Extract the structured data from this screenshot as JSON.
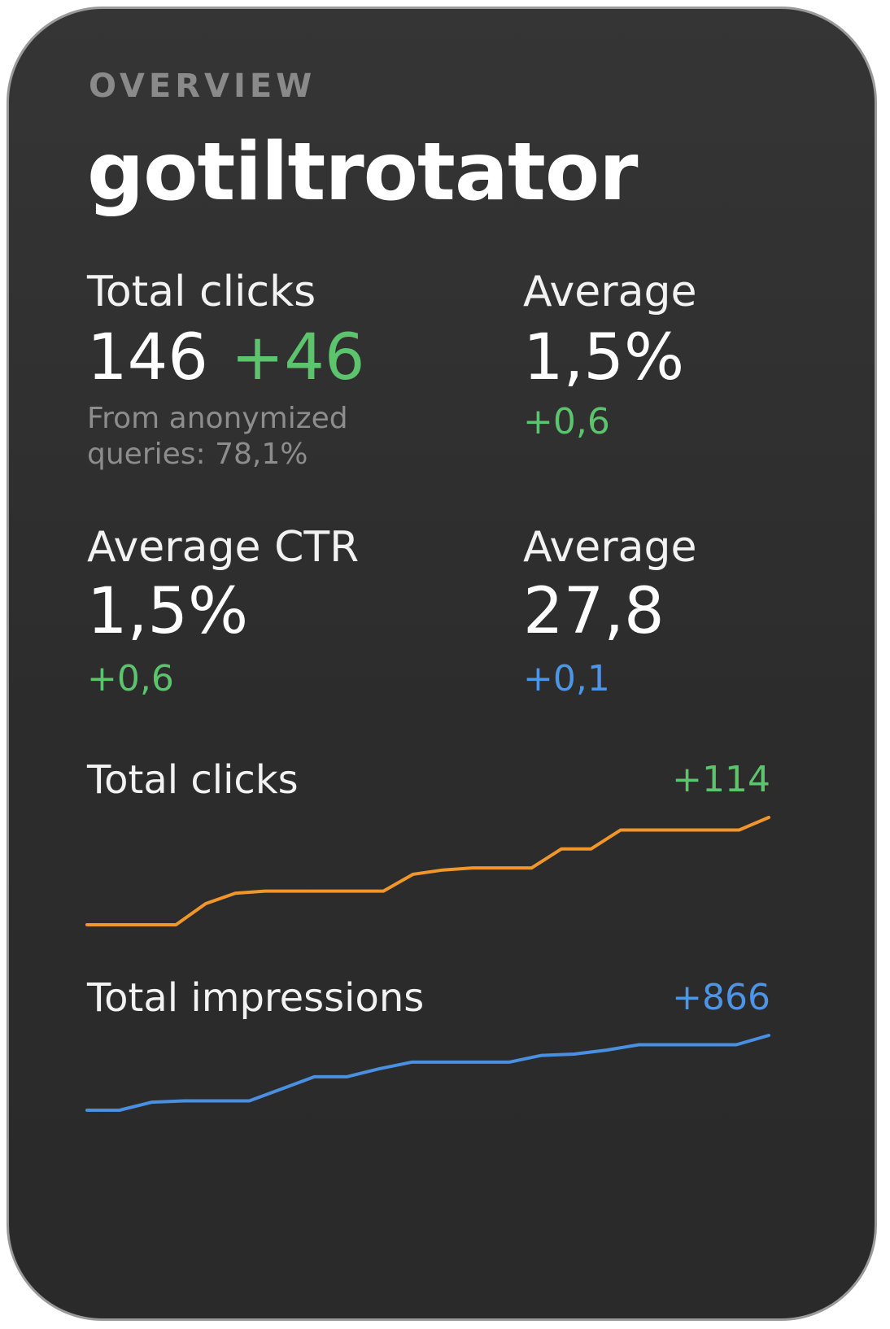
{
  "header": {
    "overline": "OVERVIEW",
    "title": "gotiltrotator"
  },
  "metrics": [
    {
      "label": "Total clicks",
      "value": "146",
      "delta": "+46",
      "delta_color": "#5cc46d",
      "note": [
        "From anonymized",
        "queries: 78,1%"
      ]
    },
    {
      "label": "Average",
      "value": "1,5%",
      "delta": "+0,6",
      "delta_color": "#5cc46d"
    },
    {
      "label": "Average CTR",
      "value": "1,5%",
      "delta": "+0,6",
      "delta_color": "#5cc46d"
    },
    {
      "label": "Average",
      "value": "27,8",
      "delta": "+0,1",
      "delta_color": "#4d95e6"
    }
  ],
  "sparklines": [
    {
      "label": "Total clicks",
      "delta": "+114",
      "delta_color": "#5cc46d",
      "line_color": "#f0962a",
      "values": [
        0,
        0,
        0,
        0,
        10,
        15,
        16,
        16,
        16,
        16,
        16,
        24,
        26,
        27,
        27,
        27,
        36,
        36,
        45,
        45,
        45,
        45,
        45,
        51
      ]
    },
    {
      "label": "Total impressions",
      "delta": "+866",
      "delta_color": "#4d95e6",
      "line_color": "#4a90e2",
      "values": [
        0,
        0,
        6,
        7,
        7,
        7,
        16,
        25,
        25,
        31,
        36,
        36,
        36,
        36,
        41,
        42,
        45,
        49,
        49,
        49,
        49,
        56
      ]
    }
  ]
}
